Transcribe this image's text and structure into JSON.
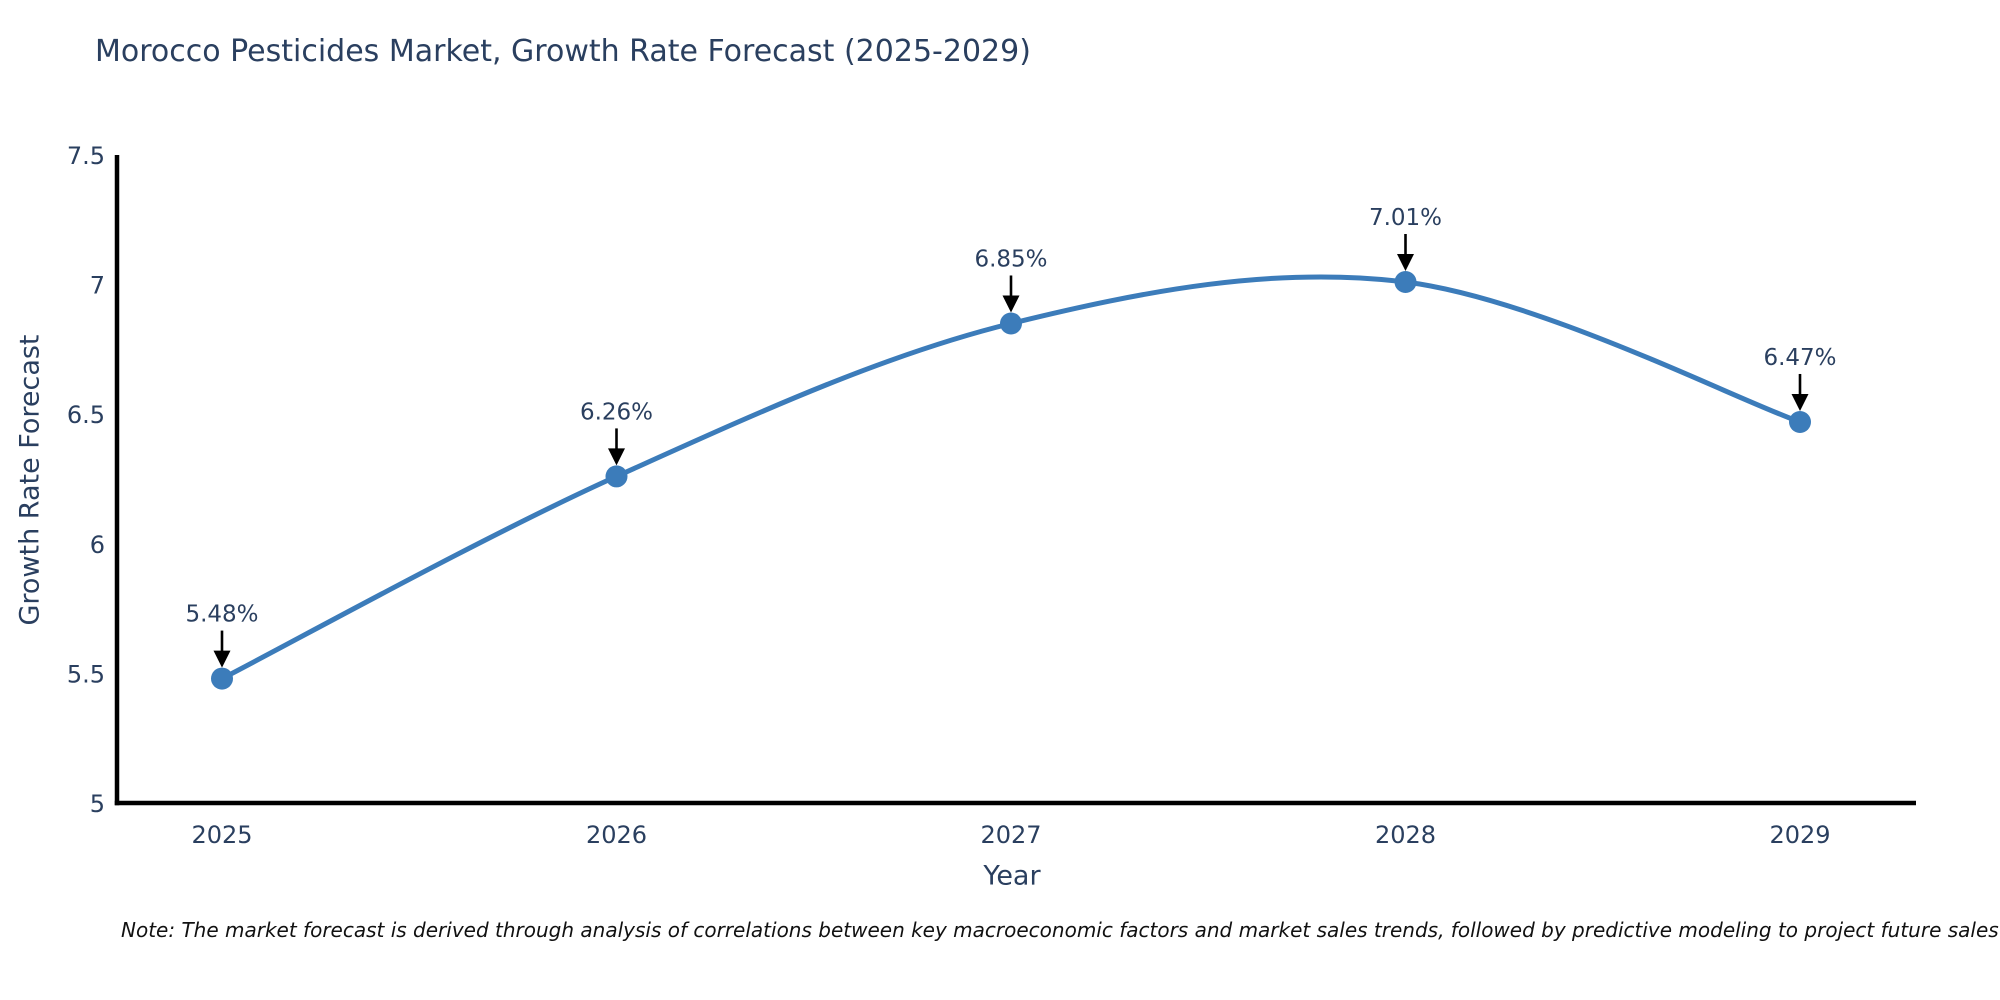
{
  "page": {
    "background": "#ffffff"
  },
  "chart_data": {
    "type": "line",
    "title": "Morocco Pesticides Market, Growth Rate Forecast (2025-2029)",
    "xlabel": "Year",
    "ylabel": "Growth Rate Forecast",
    "categories": [
      "2025",
      "2026",
      "2027",
      "2028",
      "2029"
    ],
    "series": [
      {
        "name": "Growth Rate Forecast",
        "values": [
          5.48,
          6.26,
          6.85,
          7.01,
          6.47
        ],
        "point_labels": [
          "5.48%",
          "6.26%",
          "6.85%",
          "7.01%",
          "6.47%"
        ]
      }
    ],
    "ylim": [
      5,
      7.5
    ],
    "yticks": {
      "values": [
        5,
        5.5,
        6,
        6.5,
        7,
        7.5
      ],
      "labels": [
        "5",
        "5.5",
        "6",
        "6.5",
        "7",
        "7.5"
      ]
    },
    "line_shape": "spline",
    "grid": false,
    "legend_position": "none",
    "annotation_style": "value label with black downward arrow above each data point",
    "colors": {
      "line": "#3c7cba",
      "marker": "#3c7cba",
      "text": "#2a3f5f",
      "axis_line": "#000000",
      "annotation_arrow": "#000000",
      "note_text": "#111111"
    }
  },
  "note": {
    "text": "Note: The market forecast is derived through analysis of correlations between key macroeconomic factors and market sales trends, followed by predictive modeling to project future sales"
  }
}
